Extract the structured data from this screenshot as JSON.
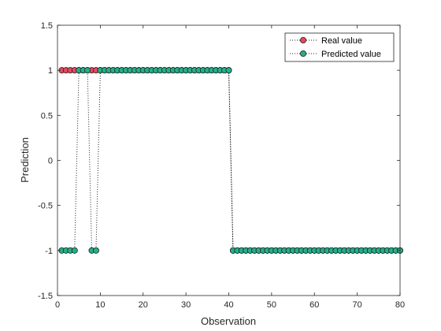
{
  "chart_data": {
    "type": "line",
    "xlabel": "Observation",
    "ylabel": "Prediction",
    "xlim": [
      0,
      80
    ],
    "ylim": [
      -1.5,
      1.5
    ],
    "xticks": [
      "0",
      "10",
      "20",
      "30",
      "40",
      "50",
      "60",
      "70",
      "80"
    ],
    "yticks": [
      "1.5",
      "1",
      "0.5",
      "0",
      "-0.5",
      "-1",
      "-1.5"
    ],
    "grid": false,
    "legend_position": "top-right",
    "x": [
      1,
      2,
      3,
      4,
      5,
      6,
      7,
      8,
      9,
      10,
      11,
      12,
      13,
      14,
      15,
      16,
      17,
      18,
      19,
      20,
      21,
      22,
      23,
      24,
      25,
      26,
      27,
      28,
      29,
      30,
      31,
      32,
      33,
      34,
      35,
      36,
      37,
      38,
      39,
      40,
      41,
      42,
      43,
      44,
      45,
      46,
      47,
      48,
      49,
      50,
      51,
      52,
      53,
      54,
      55,
      56,
      57,
      58,
      59,
      60,
      61,
      62,
      63,
      64,
      65,
      66,
      67,
      68,
      69,
      70,
      71,
      72,
      73,
      74,
      75,
      76,
      77,
      78,
      79,
      80
    ],
    "series": [
      {
        "name": "Real value",
        "color": "#e8485c",
        "line_style": "dotted",
        "marker": "circle",
        "values": [
          1,
          1,
          1,
          1,
          1,
          1,
          1,
          1,
          1,
          1,
          1,
          1,
          1,
          1,
          1,
          1,
          1,
          1,
          1,
          1,
          1,
          1,
          1,
          1,
          1,
          1,
          1,
          1,
          1,
          1,
          1,
          1,
          1,
          1,
          1,
          1,
          1,
          1,
          1,
          1,
          -1,
          -1,
          -1,
          -1,
          -1,
          -1,
          -1,
          -1,
          -1,
          -1,
          -1,
          -1,
          -1,
          -1,
          -1,
          -1,
          -1,
          -1,
          -1,
          -1,
          -1,
          -1,
          -1,
          -1,
          -1,
          -1,
          -1,
          -1,
          -1,
          -1,
          -1,
          -1,
          -1,
          -1,
          -1,
          -1,
          -1,
          -1,
          -1,
          -1
        ]
      },
      {
        "name": "Predicted value",
        "color": "#22b08a",
        "line_style": "dotted",
        "marker": "circle",
        "values": [
          -1,
          -1,
          -1,
          -1,
          1,
          1,
          1,
          -1,
          -1,
          1,
          1,
          1,
          1,
          1,
          1,
          1,
          1,
          1,
          1,
          1,
          1,
          1,
          1,
          1,
          1,
          1,
          1,
          1,
          1,
          1,
          1,
          1,
          1,
          1,
          1,
          1,
          1,
          1,
          1,
          1,
          -1,
          -1,
          -1,
          -1,
          -1,
          -1,
          -1,
          -1,
          -1,
          -1,
          -1,
          -1,
          -1,
          -1,
          -1,
          -1,
          -1,
          -1,
          -1,
          -1,
          -1,
          -1,
          -1,
          -1,
          -1,
          -1,
          -1,
          -1,
          -1,
          -1,
          -1,
          -1,
          -1,
          -1,
          -1,
          -1,
          -1,
          -1,
          -1,
          -1
        ]
      }
    ]
  }
}
